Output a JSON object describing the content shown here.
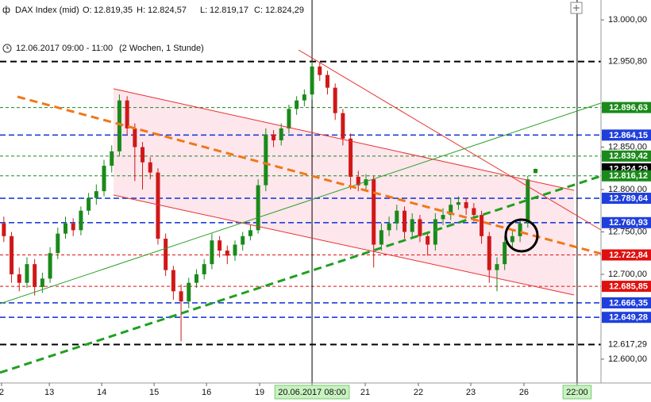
{
  "header": {
    "instrument": "DAX Index (mid)",
    "ohlc": [
      {
        "name": "O:",
        "text": "12.819,35"
      },
      {
        "name": "H:",
        "text": "12.824,57"
      },
      {
        "name": "L:",
        "text": "12.819,17"
      },
      {
        "name": "C:",
        "text": "12.824,29"
      }
    ],
    "period": "12.06.2017 09:00 - 11:00",
    "range": "(2 Wochen, 1 Stunde)"
  },
  "chart_data": {
    "type": "candlestick",
    "up_color": "#1a8a1a",
    "down_color": "#d01818",
    "xlim": [
      -0.5,
      77.5
    ],
    "ylim": [
      12571.9,
      13023.4
    ],
    "yticks": [
      {
        "value": 13000,
        "label": "13.000,00"
      },
      {
        "value": 12850,
        "label": "12.850,00"
      },
      {
        "value": 12800,
        "label": "12.800,00"
      },
      {
        "value": 12750,
        "label": "12.750,00"
      },
      {
        "value": 12700,
        "label": "12.700,00"
      },
      {
        "value": 12600,
        "label": "12.600,00"
      }
    ],
    "xticks": [
      {
        "value": -0.3,
        "label": "2"
      },
      {
        "value": 5.9,
        "label": "13"
      },
      {
        "value": 12.7,
        "label": "14"
      },
      {
        "value": 19.5,
        "label": "15"
      },
      {
        "value": 26.3,
        "label": "16"
      },
      {
        "value": 33.2,
        "label": "19"
      },
      {
        "value": 40,
        "label": "20.06.2017 08:00",
        "highlight": true
      },
      {
        "value": 46.9,
        "label": "21"
      },
      {
        "value": 53.8,
        "label": "22"
      },
      {
        "value": 60.6,
        "label": "23"
      },
      {
        "value": 67.5,
        "label": "26"
      },
      {
        "value": 74.4,
        "label": "22:00",
        "highlight": true
      }
    ],
    "open": [
      12760,
      12745,
      12700,
      12690,
      12712,
      12685,
      12695,
      12725,
      12748,
      12760,
      12752,
      12775,
      12790,
      12798,
      12828,
      12845,
      12905,
      12872,
      12850,
      12832,
      12820,
      12742,
      12705,
      12680,
      12668,
      12690,
      12700,
      12712,
      12740,
      12728,
      12722,
      12735,
      12745,
      12752,
      12805,
      12865,
      12858,
      12872,
      12895,
      12905,
      12912,
      12945,
      12935,
      12920,
      12890,
      12860,
      12815,
      12805,
      12812,
      12735,
      12752,
      12760,
      12775,
      12750,
      12765,
      12745,
      12735,
      12765,
      12770,
      12782,
      12785,
      12778,
      12770,
      12745,
      12705,
      12712,
      12738,
      12745,
      12760,
      12819.35
    ],
    "high": [
      12768,
      12750,
      12708,
      12720,
      12718,
      12702,
      12732,
      12755,
      12768,
      12766,
      12780,
      12796,
      12806,
      12835,
      12852,
      12912,
      12910,
      12878,
      12856,
      12838,
      12825,
      12748,
      12710,
      12688,
      12696,
      12706,
      12718,
      12748,
      12745,
      12734,
      12740,
      12750,
      12758,
      12812,
      12872,
      12870,
      12878,
      12900,
      12910,
      12918,
      12951,
      12950,
      12940,
      12925,
      12895,
      12866,
      12822,
      12818,
      12816,
      12760,
      12768,
      12782,
      12780,
      12772,
      12770,
      12750,
      12772,
      12778,
      12790,
      12792,
      12790,
      12784,
      12775,
      12750,
      12720,
      12745,
      12752,
      12766,
      12816,
      12824.57
    ],
    "low": [
      12738,
      12690,
      12680,
      12684,
      12675,
      12678,
      12690,
      12718,
      12742,
      12745,
      12746,
      12770,
      12782,
      12792,
      12820,
      12840,
      12865,
      12810,
      12800,
      12812,
      12735,
      12698,
      12670,
      12621,
      12660,
      12684,
      12694,
      12706,
      12720,
      12712,
      12716,
      12728,
      12740,
      12748,
      12798,
      12850,
      12852,
      12866,
      12888,
      12898,
      12906,
      12928,
      12912,
      12882,
      12852,
      12800,
      12798,
      12800,
      12708,
      12728,
      12745,
      12752,
      12742,
      12744,
      12738,
      12722,
      12728,
      12758,
      12764,
      12776,
      12770,
      12762,
      12736,
      12690,
      12680,
      12705,
      12730,
      12738,
      12755,
      12819.17
    ],
    "close": [
      12745,
      12700,
      12690,
      12712,
      12685,
      12695,
      12725,
      12748,
      12760,
      12752,
      12775,
      12790,
      12798,
      12828,
      12845,
      12905,
      12872,
      12850,
      12832,
      12820,
      12742,
      12705,
      12680,
      12668,
      12690,
      12700,
      12712,
      12740,
      12728,
      12722,
      12735,
      12745,
      12752,
      12805,
      12865,
      12858,
      12872,
      12895,
      12905,
      12912,
      12945,
      12935,
      12920,
      12890,
      12860,
      12815,
      12805,
      12812,
      12735,
      12752,
      12760,
      12775,
      12750,
      12765,
      12745,
      12735,
      12765,
      12770,
      12782,
      12785,
      12778,
      12770,
      12745,
      12705,
      12712,
      12738,
      12745,
      12760,
      12812,
      12824.29
    ],
    "levels": [
      {
        "value": 12950.8,
        "label": "12.950,80",
        "color": "#000000",
        "style": "thick",
        "box": false
      },
      {
        "value": 12896.63,
        "label": "12.896,63",
        "color": "#1a8a1a",
        "style": "thin",
        "box": true
      },
      {
        "value": 12864.15,
        "label": "12.864,15",
        "color": "#1f3fdc",
        "style": "medium",
        "box": true
      },
      {
        "value": 12839.42,
        "label": "12.839,42",
        "color": "#1a8a1a",
        "style": "thin",
        "box": true
      },
      {
        "value": 12824.29,
        "label": "12.824,29",
        "color": "#000000",
        "style": "none",
        "box": true
      },
      {
        "value": 12816.12,
        "label": "12.816,12",
        "color": "#1a8a1a",
        "style": "thin",
        "box": true
      },
      {
        "value": 12789.64,
        "label": "12.789,64",
        "color": "#1f3fdc",
        "style": "medium",
        "box": true
      },
      {
        "value": 12760.93,
        "label": "12.760,93",
        "color": "#1f3fdc",
        "style": "medium",
        "box": true
      },
      {
        "value": 12722.84,
        "label": "12.722,84",
        "color": "#e01010",
        "style": "thin",
        "box": true
      },
      {
        "value": 12685.85,
        "label": "12.685,85",
        "color": "#e01010",
        "style": "thin",
        "box": true
      },
      {
        "value": 12666.35,
        "label": "12.666,35",
        "color": "#1f3fdc",
        "style": "medium",
        "box": true
      },
      {
        "value": 12649.28,
        "label": "12.649,28",
        "color": "#1f3fdc",
        "style": "medium",
        "box": true
      },
      {
        "value": 12617.29,
        "label": "12.617,29",
        "color": "#000000",
        "style": "thick",
        "box": false
      }
    ]
  }
}
